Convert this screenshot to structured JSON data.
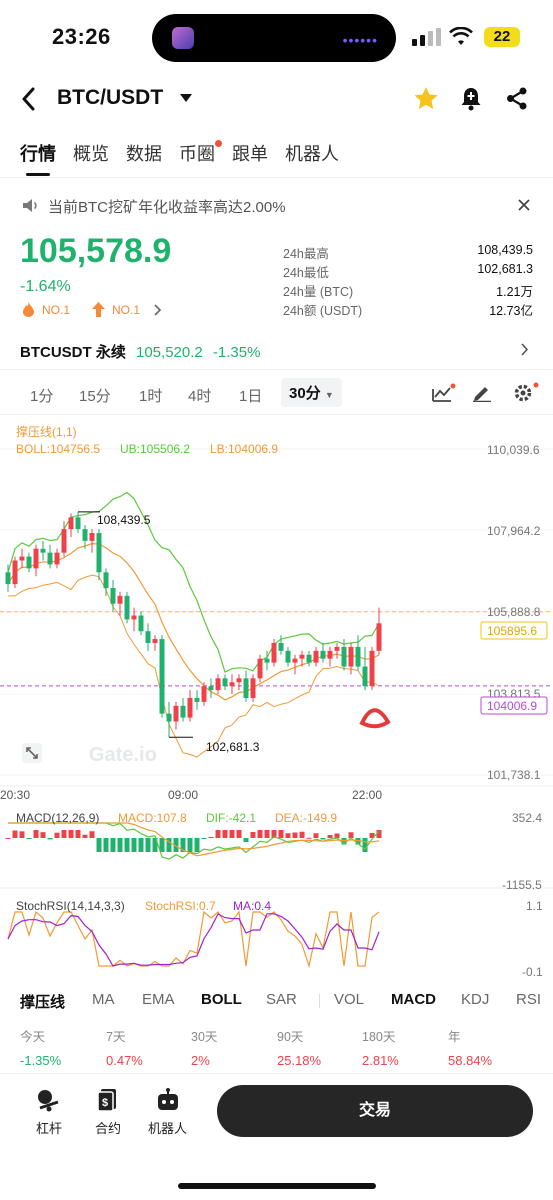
{
  "status": {
    "time": "23:26",
    "battery": "22"
  },
  "header": {
    "pair": "BTC/USDT"
  },
  "tabs": [
    "行情",
    "概览",
    "数据",
    "币圈",
    "跟单",
    "机器人"
  ],
  "notice": "当前BTC挖矿年化收益率高达2.00%",
  "ticker": {
    "price": "105,578.9",
    "change": "-1.64%",
    "rank1": "NO.1",
    "rank2": "NO.1",
    "stats": [
      {
        "label": "24h最高",
        "value": "108,439.5"
      },
      {
        "label": "24h最低",
        "value": "102,681.3"
      },
      {
        "label": "24h量 (BTC)",
        "value": "1.21万"
      },
      {
        "label": "24h额 (USDT)",
        "value": "12.73亿"
      }
    ]
  },
  "perp": {
    "name": "BTCUSDT 永续",
    "price": "105,520.2",
    "change": "-1.35%"
  },
  "timeframes": [
    "1分",
    "15分",
    "1时",
    "4时",
    "1日",
    "30分"
  ],
  "chart_overlay": {
    "title": "撑压线(1,1)",
    "boll": "BOLL:104756.5",
    "ub": "UB:105506.2",
    "lb": "LB:104006.9",
    "high_mark": "108,439.5",
    "low_mark": "102,681.3",
    "price_tag": "105895.6",
    "lb_tag": "104006.9",
    "watermark": "Gate.io"
  },
  "chart_data": {
    "type": "candlestick",
    "y_ticks": [
      "110,039.6",
      "107,964.2",
      "105,888.8",
      "103,813.5",
      "101,738.1"
    ],
    "x_ticks": [
      "20:30",
      "09:00",
      "22:00"
    ],
    "ylim": [
      101738.1,
      110039.6
    ],
    "candles": [
      [
        106900,
        107100,
        106400,
        106600
      ],
      [
        106600,
        107300,
        106500,
        107200
      ],
      [
        107200,
        107500,
        107000,
        107300
      ],
      [
        107300,
        107400,
        106900,
        107000
      ],
      [
        107000,
        107600,
        106800,
        107500
      ],
      [
        107500,
        107700,
        107200,
        107400
      ],
      [
        107400,
        107600,
        107000,
        107100
      ],
      [
        107100,
        107500,
        107000,
        107400
      ],
      [
        107400,
        108200,
        107300,
        108000
      ],
      [
        108000,
        108400,
        107800,
        108300
      ],
      [
        108300,
        108440,
        107900,
        108000
      ],
      [
        108000,
        108100,
        107500,
        107700
      ],
      [
        107700,
        108000,
        107400,
        107900
      ],
      [
        107900,
        108000,
        106700,
        106900
      ],
      [
        106900,
        107000,
        106300,
        106500
      ],
      [
        106500,
        106700,
        105900,
        106100
      ],
      [
        106100,
        106400,
        105800,
        106300
      ],
      [
        106300,
        106400,
        105600,
        105700
      ],
      [
        105700,
        106000,
        105400,
        105800
      ],
      [
        105800,
        105900,
        105300,
        105400
      ],
      [
        105400,
        105600,
        104900,
        105100
      ],
      [
        105100,
        105300,
        104900,
        105200
      ],
      [
        105200,
        105300,
        103200,
        103300
      ],
      [
        103300,
        103600,
        102700,
        103100
      ],
      [
        103100,
        103600,
        102900,
        103500
      ],
      [
        103500,
        103700,
        103100,
        103200
      ],
      [
        103200,
        103900,
        103100,
        103700
      ],
      [
        103700,
        103900,
        103400,
        103600
      ],
      [
        103600,
        104100,
        103500,
        104000
      ],
      [
        104000,
        104200,
        103700,
        103900
      ],
      [
        103900,
        104300,
        103800,
        104200
      ],
      [
        104200,
        104300,
        103900,
        104000
      ],
      [
        104000,
        104300,
        103800,
        104100
      ],
      [
        104100,
        104300,
        103900,
        104200
      ],
      [
        104200,
        104400,
        103600,
        103700
      ],
      [
        103700,
        104300,
        103600,
        104200
      ],
      [
        104200,
        104800,
        104100,
        104700
      ],
      [
        104700,
        104900,
        104400,
        104600
      ],
      [
        104600,
        105200,
        104500,
        105100
      ],
      [
        105100,
        105300,
        104800,
        104900
      ],
      [
        104900,
        105000,
        104500,
        104600
      ],
      [
        104600,
        104800,
        104300,
        104700
      ],
      [
        104700,
        104900,
        104500,
        104800
      ],
      [
        104800,
        104900,
        104500,
        104600
      ],
      [
        104600,
        105000,
        104500,
        104900
      ],
      [
        104900,
        105100,
        104600,
        104700
      ],
      [
        104700,
        105000,
        104500,
        104900
      ],
      [
        104900,
        105100,
        104700,
        105000
      ],
      [
        105000,
        105200,
        104400,
        104500
      ],
      [
        104500,
        105100,
        104300,
        105000
      ],
      [
        105000,
        105300,
        104400,
        104500
      ],
      [
        104500,
        105000,
        103900,
        104000
      ],
      [
        104000,
        105000,
        103900,
        104900
      ],
      [
        104900,
        106000,
        104800,
        105600
      ]
    ],
    "macd": {
      "label": "MACD(12,26,9)",
      "macd": "MACD:107.8",
      "dif": "DIF:-42.1",
      "dea": "DEA:-149.9",
      "y_ticks": [
        "352.4",
        "-1155.5"
      ]
    },
    "stochrsi": {
      "label": "StochRSI(14,14,3,3)",
      "k": "StochRSI:0.7",
      "ma": "MA:0.4",
      "y_ticks": [
        "1.1",
        "-0.1"
      ]
    }
  },
  "indicator_tabs": [
    "撑压线",
    "MA",
    "EMA",
    "BOLL",
    "SAR",
    "VOL",
    "MACD",
    "KDJ",
    "RSI"
  ],
  "performance": [
    {
      "label": "今天",
      "value": "-1.35%"
    },
    {
      "label": "7天",
      "value": "0.47%"
    },
    {
      "label": "30天",
      "value": "2%"
    },
    {
      "label": "90天",
      "value": "25.18%"
    },
    {
      "label": "180天",
      "value": "2.81%"
    },
    {
      "label": "年",
      "value": "58.84%"
    }
  ],
  "bottom_nav": [
    "杠杆",
    "合约",
    "机器人"
  ],
  "trade_button": "交易",
  "colors": {
    "up": "#f0414a",
    "down": "#20b26c",
    "boll_mid": "#f09a37",
    "boll_band": "#5ac93a",
    "lb": "#b84ad8"
  }
}
